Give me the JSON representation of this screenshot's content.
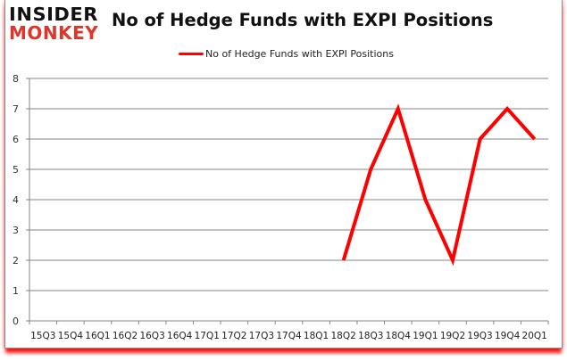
{
  "logo": {
    "line1": "INSIDER",
    "line2": "MONKEY"
  },
  "header": {
    "title": "No of Hedge Funds with EXPI Positions"
  },
  "legend": {
    "label": "No of Hedge Funds with EXPI Positions",
    "color": "#ff0000"
  },
  "colors": {
    "series": "#ff0000",
    "grid": "#868686",
    "logo_accent": "#e0352b",
    "shadow": "#ff0000"
  },
  "chart_data": {
    "type": "line",
    "title": "No of Hedge Funds with EXPI Positions",
    "xlabel": "",
    "ylabel": "",
    "ylim": [
      0,
      8
    ],
    "yticks": [
      0,
      1,
      2,
      3,
      4,
      5,
      6,
      7,
      8
    ],
    "grid": true,
    "legend_position": "top",
    "categories": [
      "15Q3",
      "15Q4",
      "16Q1",
      "16Q2",
      "16Q3",
      "16Q4",
      "17Q1",
      "17Q2",
      "17Q3",
      "17Q4",
      "18Q1",
      "18Q2",
      "18Q3",
      "18Q4",
      "19Q1",
      "19Q2",
      "19Q3",
      "19Q4",
      "20Q1"
    ],
    "series": [
      {
        "name": "No of Hedge Funds with EXPI Positions",
        "color": "#ff0000",
        "values": [
          null,
          null,
          null,
          null,
          null,
          null,
          null,
          null,
          null,
          null,
          null,
          2,
          5,
          7,
          4,
          2,
          6,
          7,
          6
        ]
      }
    ]
  }
}
